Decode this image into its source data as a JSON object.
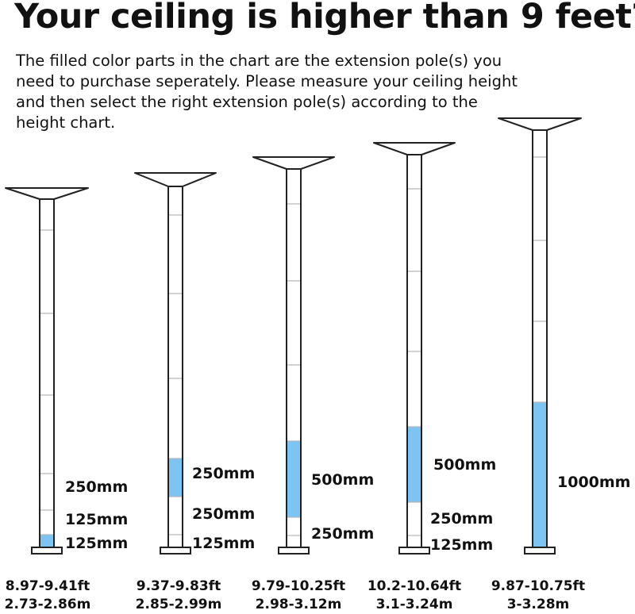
{
  "header": {
    "title": "Your ceiling is higher than 9 feet?",
    "description": "The filled color parts in the chart are the extension pole(s) you need to purchase seperately.  Please measure your ceiling height and then select the right extension pole(s) according to the height chart."
  },
  "colors": {
    "fill": "#7cc4f2",
    "outline": "#222222",
    "tick": "#b5b5b5"
  },
  "poles": [
    {
      "labels": [
        "250mm",
        "125mm",
        "125mm"
      ],
      "range_ft": "8.97-9.41ft",
      "range_m": "2.73-2.86m"
    },
    {
      "labels": [
        "250mm",
        "250mm",
        "125mm"
      ],
      "range_ft": "9.37-9.83ft",
      "range_m": "2.85-2.99m"
    },
    {
      "labels": [
        "500mm",
        "250mm"
      ],
      "range_ft": "9.79-10.25ft",
      "range_m": "2.98-3.12m"
    },
    {
      "labels": [
        "500mm",
        "250mm",
        "125mm"
      ],
      "range_ft": "10.2-10.64ft",
      "range_m": "3.1-3.24m"
    },
    {
      "labels": [
        "1000mm"
      ],
      "range_ft": "9.87-10.75ft",
      "range_m": "3-3.28m"
    }
  ]
}
